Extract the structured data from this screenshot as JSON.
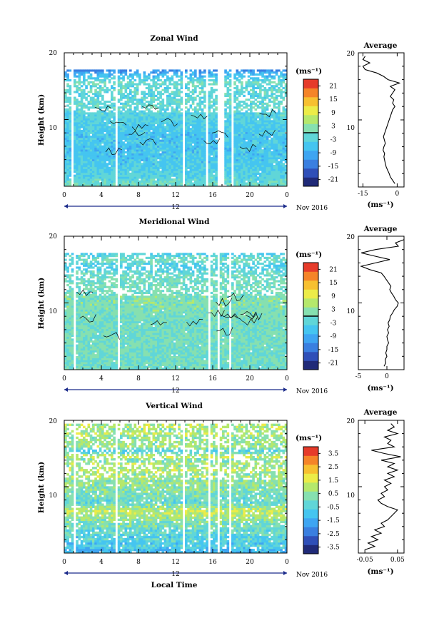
{
  "colors": {
    "scale": [
      "#202a78",
      "#2f4fb8",
      "#3a7fe0",
      "#3ea5f2",
      "#45c5f0",
      "#60d6d8",
      "#86e0b0",
      "#b5e86c",
      "#ecec48",
      "#f7c030",
      "#f58428",
      "#e63b2a"
    ],
    "gap": "#ffffff",
    "contour": "#000000"
  },
  "x_axis": {
    "ticks": [
      "0",
      "4",
      "8",
      "12",
      "16",
      "20",
      "0"
    ],
    "day_label": "12",
    "date_label": "Nov 2016",
    "label": "Local Time"
  },
  "chart_data": [
    {
      "type": "heatmap",
      "title": "Zonal Wind",
      "ylabel": "Height (km)",
      "xlim": [
        0,
        24
      ],
      "ylim": [
        0,
        20
      ],
      "y_ticks": [
        "20",
        "10"
      ],
      "colorbar": {
        "unit_label": "(ms⁻¹)",
        "range": [
          -24,
          24
        ],
        "ticks": [
          "21",
          "15",
          "9",
          "3",
          "-3",
          "-9",
          "-15",
          "-21"
        ],
        "contour_at": 0
      },
      "gaps_x": [
        [
          0.75,
          1.05
        ],
        [
          5.6,
          5.85
        ],
        [
          12.8,
          13.05
        ],
        [
          15.3,
          15.55
        ],
        [
          15.9,
          16.1
        ],
        [
          16.6,
          17.2
        ],
        [
          18.1,
          18.3
        ]
      ],
      "top_km": 17.5,
      "profile": {
        "title": "Average",
        "xlim": [
          -17,
          3
        ],
        "x_ticks": [
          "-15",
          "0"
        ],
        "x_tick_values": [
          -15,
          0
        ],
        "y_ticks": [
          "20",
          "10"
        ],
        "unit": "(ms⁻¹)",
        "heights": [
          0.5,
          1,
          1.5,
          2,
          2.5,
          3,
          3.5,
          4,
          4.5,
          5,
          5.5,
          6,
          6.5,
          7,
          7.5,
          8,
          8.5,
          9,
          9.5,
          10,
          10.5,
          11,
          11.5,
          12,
          12.5,
          13,
          13.5,
          14,
          14.5,
          15,
          15.5,
          16,
          16.5,
          17,
          17.5,
          18,
          18.5,
          19,
          19.5
        ],
        "values": [
          -1,
          -2,
          -3,
          -3.5,
          -4.2,
          -4.8,
          -5.2,
          -5.5,
          -5.8,
          -5.5,
          -6.2,
          -5.8,
          -5.2,
          -5.6,
          -6,
          -5.5,
          -5,
          -4.5,
          -4,
          -3.5,
          -3,
          -2.5,
          -2,
          -1,
          -2,
          -1.5,
          -3,
          -2,
          -1,
          -3,
          1,
          -4,
          -6,
          -9,
          -14,
          -15,
          -12,
          -15,
          -14
        ]
      }
    },
    {
      "type": "heatmap",
      "title": "Meridional Wind",
      "ylabel": "Height (km)",
      "xlim": [
        0,
        24
      ],
      "ylim": [
        0,
        20
      ],
      "y_ticks": [
        "20",
        "10"
      ],
      "colorbar": {
        "unit_label": "(ms⁻¹)",
        "range": [
          -24,
          24
        ],
        "ticks": [
          "21",
          "15",
          "9",
          "3",
          "-3",
          "-9",
          "-15",
          "-21"
        ],
        "contour_at": 0
      },
      "gaps_x": [
        [
          1.0,
          1.25
        ],
        [
          5.7,
          5.9
        ],
        [
          15.6,
          15.85
        ],
        [
          16.6,
          16.8
        ],
        [
          17.8,
          18.05
        ]
      ],
      "top_km": 17.5,
      "profile": {
        "title": "Average",
        "xlim": [
          -5,
          3
        ],
        "x_ticks": [
          "-5",
          "0"
        ],
        "x_tick_values": [
          -5,
          0
        ],
        "y_ticks": [
          "20",
          "10"
        ],
        "unit": "(ms⁻¹)",
        "heights": [
          0.5,
          1,
          1.5,
          2,
          2.5,
          3,
          3.5,
          4,
          4.5,
          5,
          5.5,
          6,
          6.5,
          7,
          7.5,
          8,
          8.5,
          9,
          9.5,
          10,
          10.5,
          11,
          11.5,
          12,
          12.5,
          13,
          13.5,
          14,
          14.5,
          15,
          15.5,
          16,
          16.5,
          17,
          17.5,
          18,
          18.5,
          19,
          19.5
        ],
        "values": [
          -0.5,
          -0.2,
          -0.3,
          0,
          -0.2,
          0,
          0,
          0.3,
          0.1,
          0,
          0.3,
          0.1,
          0.4,
          0.2,
          0.5,
          0.6,
          1,
          1.3,
          1.8,
          2,
          1.5,
          1.2,
          0.8,
          0.5,
          0.7,
          0.3,
          -0.1,
          -0.5,
          -1,
          -3,
          -4.5,
          -2,
          0.5,
          -2,
          -4.5,
          -2,
          2,
          1.5,
          3
        ]
      }
    },
    {
      "type": "heatmap",
      "title": "Vertical Wind",
      "ylabel": "Height (km)",
      "xlabel": "Local Time",
      "xlim": [
        0,
        24
      ],
      "ylim": [
        0,
        20
      ],
      "y_ticks": [
        "20",
        "10"
      ],
      "colorbar": {
        "unit_label": "(ms⁻¹)",
        "range": [
          -4,
          4
        ],
        "ticks": [
          "3.5",
          "2.5",
          "1.5",
          "0.5",
          "-0.5",
          "-1.5",
          "-2.5",
          "-3.5"
        ]
      },
      "gaps_x": [
        [
          1.0,
          1.2
        ],
        [
          5.5,
          5.7
        ],
        [
          12.8,
          13.0
        ],
        [
          15.6,
          15.8
        ],
        [
          16.6,
          16.8
        ],
        [
          17.8,
          18.0
        ]
      ],
      "top_km": 19.5,
      "profile": {
        "title": "Average",
        "xlim": [
          -0.07,
          0.07
        ],
        "x_ticks": [
          "-0.05",
          "0.05"
        ],
        "x_tick_values": [
          -0.05,
          0.05
        ],
        "y_ticks": [
          "20",
          "10"
        ],
        "unit": "(ms⁻¹)",
        "heights": [
          0.5,
          1,
          1.5,
          2,
          2.5,
          3,
          3.5,
          4,
          4.5,
          5,
          5.5,
          6,
          6.5,
          7,
          7.5,
          8,
          8.5,
          9,
          9.5,
          10,
          10.5,
          11,
          11.5,
          12,
          12.5,
          13,
          13.5,
          14,
          14.5,
          15,
          15.5,
          16,
          16.5,
          17,
          17.5,
          18,
          18.5,
          19,
          19.5
        ],
        "values": [
          -0.05,
          -0.02,
          -0.04,
          -0.01,
          -0.03,
          0,
          -0.02,
          0.01,
          0,
          0.02,
          0.03,
          0.04,
          0.05,
          0.02,
          0,
          -0.01,
          0.01,
          0,
          0.02,
          0.01,
          0.03,
          0.01,
          0.04,
          0.02,
          0.05,
          0.02,
          0.04,
          0,
          0.06,
          0.01,
          -0.03,
          0.04,
          0.02,
          0.03,
          0.01,
          0.05,
          0.02,
          0.04,
          0.03
        ]
      }
    }
  ]
}
